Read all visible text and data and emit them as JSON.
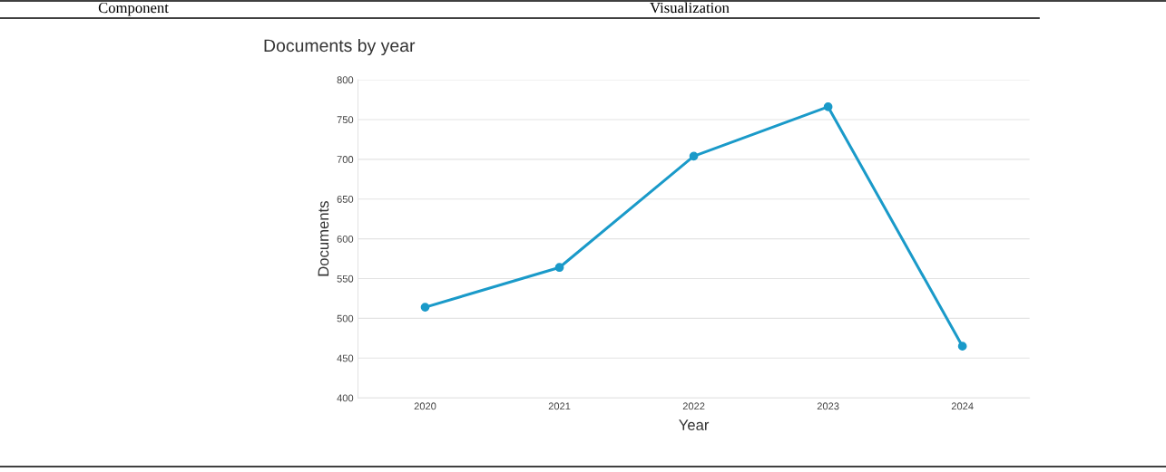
{
  "chart_data": {
    "type": "line",
    "title": "Documents by year",
    "xlabel": "Year",
    "ylabel": "Documents",
    "categories": [
      "2020",
      "2021",
      "2022",
      "2023",
      "2024"
    ],
    "series": [
      {
        "color": "#1a9ac9",
        "values": [
          514,
          564,
          704,
          766,
          465
        ]
      }
    ],
    "ylim": [
      400,
      800
    ],
    "yticks": [
      400,
      450,
      500,
      550,
      600,
      650,
      700,
      750,
      800
    ],
    "grid": "y",
    "marker": "circle",
    "line_style": "solid",
    "legend": false,
    "annotations": [
      "Component",
      "Visualization"
    ]
  }
}
